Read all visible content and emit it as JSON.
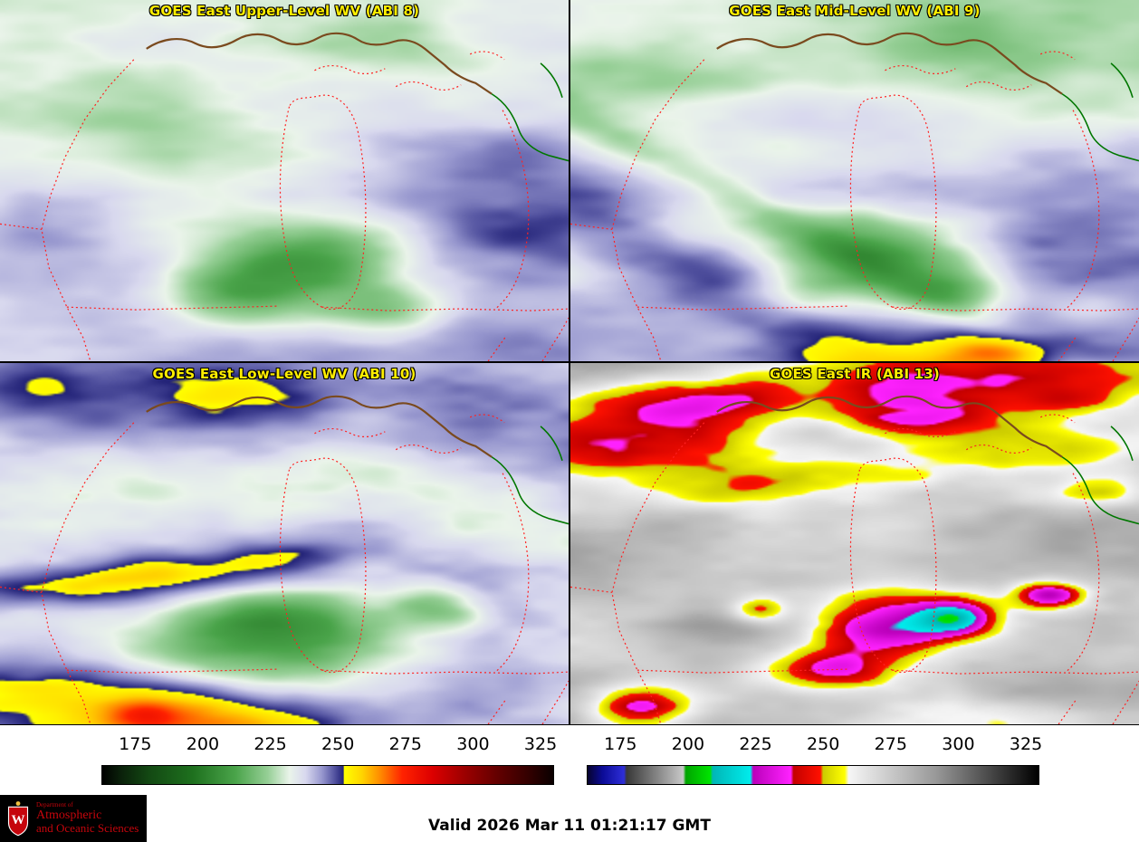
{
  "panels": [
    {
      "title": "GOES East Upper-Level WV (ABI 8)"
    },
    {
      "title": "GOES East Mid-Level WV (ABI 9)"
    },
    {
      "title": "GOES East Low-Level WV (ABI 10)"
    },
    {
      "title": "GOES East IR (ABI 13)"
    }
  ],
  "style": {
    "title_color": "#ffee00",
    "border_red": "#ff2222",
    "border_green": "#007700",
    "shoreline_brown": "#7a4a1e",
    "uw_red": "#c5050c"
  },
  "colorbars": {
    "range": [
      162.5,
      330
    ],
    "ticks": [
      "175",
      "200",
      "225",
      "250",
      "275",
      "300",
      "325"
    ],
    "wv_stops": [
      {
        "v": 162.5,
        "c": "#000000"
      },
      {
        "v": 169,
        "c": "#0a1f0a"
      },
      {
        "v": 180,
        "c": "#134913"
      },
      {
        "v": 196,
        "c": "#1e701e"
      },
      {
        "v": 212,
        "c": "#4aa44a"
      },
      {
        "v": 224,
        "c": "#96cf96"
      },
      {
        "v": 232,
        "c": "#eaf4ea"
      },
      {
        "v": 238,
        "c": "#d8d8ee"
      },
      {
        "v": 244,
        "c": "#9898cf"
      },
      {
        "v": 249,
        "c": "#50509e"
      },
      {
        "v": 252,
        "c": "#232378"
      },
      {
        "v": 252.4,
        "c": "#ffff00"
      },
      {
        "v": 259,
        "c": "#ffd400"
      },
      {
        "v": 266,
        "c": "#ff8800"
      },
      {
        "v": 274,
        "c": "#ff2200"
      },
      {
        "v": 285,
        "c": "#dd0000"
      },
      {
        "v": 297,
        "c": "#9c0000"
      },
      {
        "v": 310,
        "c": "#600000"
      },
      {
        "v": 322,
        "c": "#2e0000"
      },
      {
        "v": 330,
        "c": "#0a0000"
      }
    ],
    "ir_stops": [
      {
        "v": 162.5,
        "c": "#07032e"
      },
      {
        "v": 168,
        "c": "#0b0b96"
      },
      {
        "v": 176,
        "c": "#2e2ed8"
      },
      {
        "v": 177,
        "c": "#383838"
      },
      {
        "v": 198,
        "c": "#c8c8c8"
      },
      {
        "v": 199,
        "c": "#00a400"
      },
      {
        "v": 208,
        "c": "#00e400"
      },
      {
        "v": 209,
        "c": "#00b6b6"
      },
      {
        "v": 223,
        "c": "#00ecec"
      },
      {
        "v": 224,
        "c": "#bb00bb"
      },
      {
        "v": 238,
        "c": "#ff22ff"
      },
      {
        "v": 239,
        "c": "#c40000"
      },
      {
        "v": 249,
        "c": "#ff1100"
      },
      {
        "v": 250,
        "c": "#cccc00"
      },
      {
        "v": 258,
        "c": "#ffff00"
      },
      {
        "v": 259.5,
        "c": "#f6f6f6"
      },
      {
        "v": 292,
        "c": "#989898"
      },
      {
        "v": 330,
        "c": "#000000"
      }
    ]
  },
  "footer": {
    "valid_text": "Valid 2026 Mar 11 01:21:17 GMT"
  },
  "logo": {
    "letter": "W",
    "dept": "Department of",
    "line1": "Atmospheric",
    "line2": "and Oceanic Sciences"
  }
}
